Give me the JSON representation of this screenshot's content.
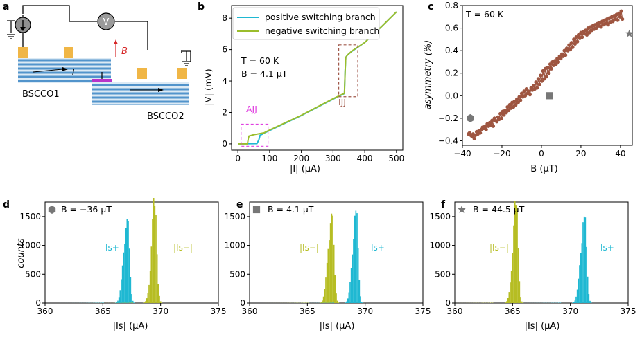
{
  "panels": {
    "a": {
      "label": "a",
      "bscco1": "BSCCO1",
      "bscco2": "BSCCO2",
      "current_label": "I",
      "field_label": "B",
      "voltmeter": "V",
      "colors": {
        "field": "#d62728",
        "junction": "#b833c9",
        "contact": "#f0b646",
        "stripe_a": "#2f7fc1",
        "stripe_b": "#ffffff"
      }
    },
    "b": {
      "label": "b",
      "legend_positive": "positive switching branch",
      "legend_negative": "negative switching branch",
      "temp_label": "T = 60 K",
      "field_label": "B = 4.1 μT",
      "ajj_label": "AJJ",
      "ijj_label": "IJJ",
      "colors": {
        "positive": "#1fb8d2",
        "negative": "#9bbd2c",
        "ajj_box": "#e040e0",
        "ijj_box": "#a0584a"
      }
    },
    "c": {
      "label": "c",
      "temp_label": "T = 60 K",
      "colors": {
        "series": "#9e5540",
        "marker": "#777777"
      }
    },
    "d": {
      "label": "d",
      "field_label": "B = −36 μT"
    },
    "e": {
      "label": "e",
      "field_label": "B = 4.1 μT"
    },
    "f": {
      "label": "f",
      "field_label": "B = 44.5 μT"
    },
    "hist_shared": {
      "ylabel": "counts",
      "xlabel": "|Is| (μA)",
      "pos_label": "Is+",
      "neg_label": "|Is−|",
      "colors": {
        "positive": "#1fb8d2",
        "negative": "#b6bd23"
      }
    }
  },
  "chart_data": [
    {
      "id": "b",
      "type": "line",
      "xlabel": "|I| (μA)",
      "ylabel": "|V| (mV)",
      "xlim": [
        -20,
        520
      ],
      "ylim": [
        -0.4,
        8.8
      ],
      "xticks": [
        0,
        100,
        200,
        300,
        400,
        500
      ],
      "yticks": [
        0,
        2,
        4,
        6,
        8
      ],
      "series": [
        {
          "name": "positive switching branch",
          "x": [
            0,
            60,
            66,
            70,
            78,
            82,
            100,
            200,
            300,
            336,
            338,
            340,
            345,
            360,
            400,
            455,
            500
          ],
          "y": [
            0,
            0.02,
            0.25,
            0.55,
            0.62,
            0.68,
            0.85,
            1.8,
            2.85,
            3.2,
            4.6,
            5.5,
            5.65,
            5.9,
            6.45,
            7.5,
            8.4
          ]
        },
        {
          "name": "negative switching branch",
          "x": [
            0,
            30,
            33,
            35,
            50,
            82,
            100,
            200,
            300,
            336,
            338,
            340,
            345,
            360,
            400,
            455,
            500
          ],
          "y": [
            0,
            0.0,
            0.35,
            0.5,
            0.58,
            0.7,
            0.88,
            1.82,
            2.87,
            3.22,
            4.6,
            5.5,
            5.65,
            5.92,
            6.45,
            7.5,
            8.4
          ]
        }
      ],
      "annotations": [
        {
          "label": "AJJ",
          "x_range": [
            10,
            95
          ],
          "y_range": [
            -0.15,
            1.25
          ]
        },
        {
          "label": "IJJ",
          "x_range": [
            318,
            378
          ],
          "y_range": [
            3.0,
            6.3
          ]
        }
      ]
    },
    {
      "id": "c",
      "type": "scatter",
      "xlabel": "B (μT)",
      "ylabel": "asymmetry (%)",
      "xlim": [
        -40,
        46
      ],
      "ylim": [
        -0.44,
        0.8
      ],
      "xticks": [
        -40,
        -20,
        0,
        20,
        40
      ],
      "yticks": [
        -0.4,
        -0.2,
        0.0,
        0.2,
        0.4,
        0.6,
        0.8
      ],
      "x_start": -37,
      "x_step": 0.6,
      "y": [
        -0.34,
        -0.33,
        -0.35,
        -0.36,
        -0.34,
        -0.38,
        -0.35,
        -0.32,
        -0.34,
        -0.31,
        -0.33,
        -0.3,
        -0.28,
        -0.29,
        -0.27,
        -0.3,
        -0.25,
        -0.27,
        -0.24,
        -0.26,
        -0.22,
        -0.27,
        -0.2,
        -0.22,
        -0.23,
        -0.19,
        -0.21,
        -0.16,
        -0.2,
        -0.14,
        -0.17,
        -0.13,
        -0.15,
        -0.1,
        -0.13,
        -0.08,
        -0.11,
        -0.06,
        -0.1,
        -0.05,
        -0.08,
        -0.03,
        -0.06,
        -0.01,
        -0.04,
        0.02,
        -0.01,
        0.04,
        0.0,
        0.06,
        0.02,
        0.04,
        0.01,
        0.07,
        0.05,
        0.09,
        0.06,
        0.12,
        0.07,
        0.15,
        0.1,
        0.18,
        0.13,
        0.22,
        0.15,
        0.24,
        0.17,
        0.25,
        0.2,
        0.28,
        0.24,
        0.3,
        0.27,
        0.31,
        0.28,
        0.33,
        0.3,
        0.35,
        0.33,
        0.37,
        0.35,
        0.4,
        0.36,
        0.42,
        0.4,
        0.45,
        0.41,
        0.47,
        0.43,
        0.5,
        0.46,
        0.52,
        0.48,
        0.54,
        0.51,
        0.56,
        0.52,
        0.57,
        0.55,
        0.58,
        0.54,
        0.6,
        0.56,
        0.61,
        0.58,
        0.62,
        0.59,
        0.63,
        0.6,
        0.64,
        0.62,
        0.65,
        0.61,
        0.66,
        0.63,
        0.67,
        0.64,
        0.68,
        0.63,
        0.69,
        0.65,
        0.7,
        0.66,
        0.71,
        0.68,
        0.72,
        0.67,
        0.73,
        0.7,
        0.75,
        0.68
      ],
      "markers": [
        {
          "shape": "hexagon",
          "x": -36,
          "y": -0.2
        },
        {
          "shape": "square",
          "x": 4.1,
          "y": 0.0
        },
        {
          "shape": "star",
          "x": 44.5,
          "y": 0.55
        }
      ]
    },
    {
      "id": "d",
      "type": "histogram",
      "marker": "hexagon",
      "xlim": [
        360,
        375
      ],
      "ylim": [
        0,
        1750
      ],
      "xticks": [
        360,
        365,
        370,
        375
      ],
      "yticks": [
        0,
        500,
        1000,
        1500
      ],
      "bin_width": 0.1,
      "series": [
        {
          "name": "Is+",
          "center": 367.1,
          "width": 0.3,
          "peak": 1450
        },
        {
          "name": "|Is−|",
          "center": 369.5,
          "width": 0.28,
          "peak": 1690
        }
      ]
    },
    {
      "id": "e",
      "type": "histogram",
      "marker": "square",
      "xlim": [
        360,
        375
      ],
      "ylim": [
        0,
        1750
      ],
      "xticks": [
        360,
        365,
        370,
        375
      ],
      "yticks": [
        0,
        500,
        1000,
        1500
      ],
      "bin_width": 0.1,
      "series": [
        {
          "name": "|Is−|",
          "center": 367.1,
          "width": 0.3,
          "peak": 1550
        },
        {
          "name": "Is+",
          "center": 369.2,
          "width": 0.28,
          "peak": 1600
        }
      ]
    },
    {
      "id": "f",
      "type": "histogram",
      "marker": "star",
      "xlim": [
        360,
        375
      ],
      "ylim": [
        0,
        1750
      ],
      "xticks": [
        360,
        365,
        370,
        375
      ],
      "yticks": [
        0,
        500,
        1000,
        1500
      ],
      "bin_width": 0.1,
      "series": [
        {
          "name": "|Is−|",
          "center": 365.3,
          "width": 0.28,
          "peak": 1700
        },
        {
          "name": "Is+",
          "center": 371.2,
          "width": 0.3,
          "peak": 1500
        }
      ]
    }
  ]
}
